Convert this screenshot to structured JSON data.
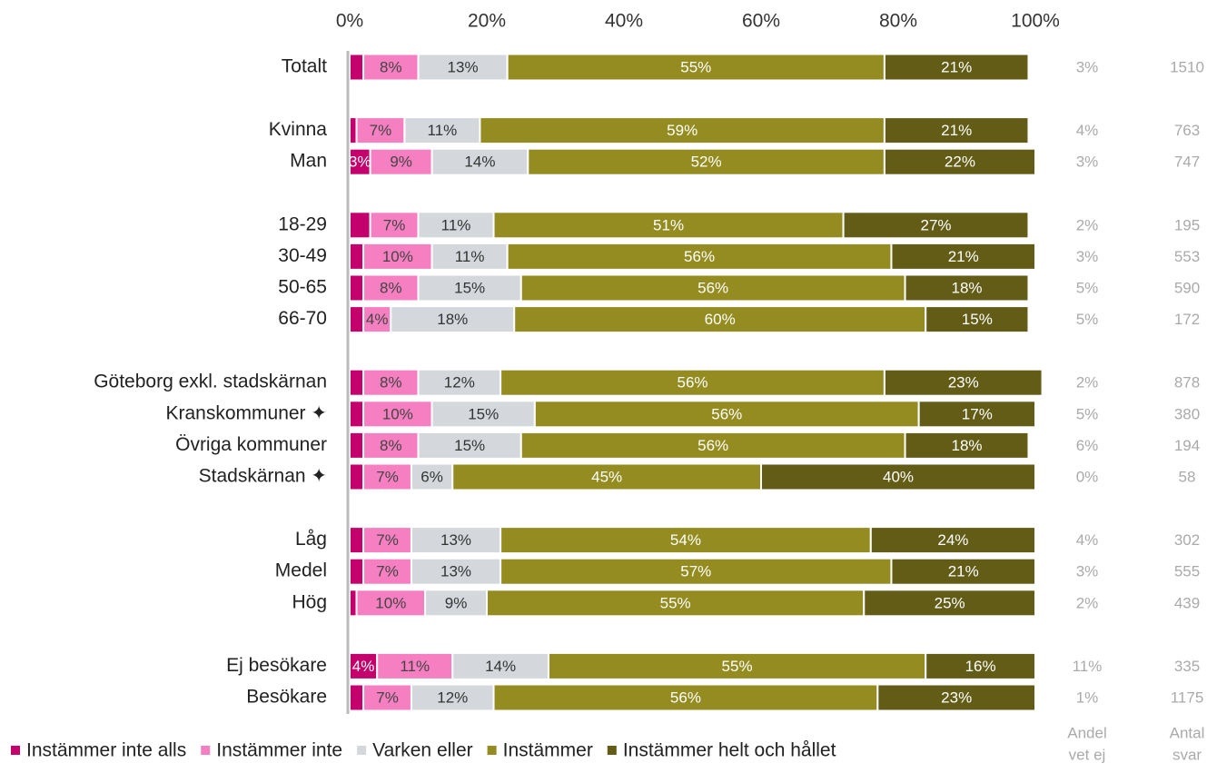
{
  "chart_data": {
    "type": "stacked-bar-horizontal",
    "categories": [
      "Totalt",
      "Kvinna",
      "Man",
      "18-29",
      "30-49",
      "50-65",
      "66-70",
      "Göteborg exkl. stadskärnan",
      "Kranskommuner ✦",
      "Övriga kommuner",
      "Stadskärnan ✦",
      "Låg",
      "Medel",
      "Hög",
      "Ej besökare",
      "Besökare"
    ],
    "series": [
      {
        "name": "Instämmer inte alls",
        "color": "#c4006c",
        "values": [
          2,
          1,
          3,
          3,
          2,
          2,
          2,
          2,
          2,
          2,
          2,
          2,
          2,
          1,
          4,
          2
        ],
        "value_labels": [
          null,
          null,
          "3%",
          null,
          null,
          null,
          null,
          null,
          null,
          null,
          null,
          null,
          null,
          null,
          "4%",
          null
        ]
      },
      {
        "name": "Instämmer inte",
        "color": "#f57fc0",
        "values": [
          8,
          7,
          9,
          7,
          10,
          8,
          4,
          8,
          10,
          8,
          7,
          7,
          7,
          10,
          11,
          7
        ],
        "value_labels": [
          "8%",
          "7%",
          "9%",
          "7%",
          "10%",
          "8%",
          "4%",
          "8%",
          "10%",
          "8%",
          "7%",
          "7%",
          "7%",
          "10%",
          "11%",
          "7%"
        ]
      },
      {
        "name": "Varken eller",
        "color": "#d4d8dc",
        "values": [
          13,
          11,
          14,
          11,
          11,
          15,
          18,
          12,
          15,
          15,
          6,
          13,
          13,
          9,
          14,
          12
        ],
        "value_labels": [
          "13%",
          "11%",
          "14%",
          "11%",
          "11%",
          "15%",
          "18%",
          "12%",
          "15%",
          "15%",
          "6%",
          "13%",
          "13%",
          "9%",
          "14%",
          "12%"
        ]
      },
      {
        "name": "Instämmer",
        "color": "#948c20",
        "values": [
          55,
          59,
          52,
          51,
          56,
          56,
          60,
          56,
          56,
          56,
          45,
          54,
          57,
          55,
          55,
          56
        ],
        "value_labels": [
          "55%",
          "59%",
          "52%",
          "51%",
          "56%",
          "56%",
          "60%",
          "56%",
          "56%",
          "56%",
          "45%",
          "54%",
          "57%",
          "55%",
          "55%",
          "56%"
        ]
      },
      {
        "name": "Instämmer helt och hållet",
        "color": "#625c16",
        "values": [
          21,
          21,
          22,
          27,
          21,
          18,
          15,
          23,
          17,
          18,
          40,
          24,
          21,
          25,
          16,
          23
        ],
        "value_labels": [
          "21%",
          "21%",
          "22%",
          "27%",
          "21%",
          "18%",
          "15%",
          "23%",
          "17%",
          "18%",
          "40%",
          "24%",
          "21%",
          "25%",
          "16%",
          "23%"
        ]
      }
    ],
    "xlim": [
      0,
      100
    ],
    "xticks": [
      {
        "value": 0,
        "label": "0%"
      },
      {
        "value": 20,
        "label": "20%"
      },
      {
        "value": 40,
        "label": "40%"
      },
      {
        "value": 60,
        "label": "60%"
      },
      {
        "value": 80,
        "label": "80%"
      },
      {
        "value": 100,
        "label": "100%"
      }
    ],
    "side_columns": [
      {
        "header": [
          "Andel",
          "vet ej"
        ],
        "values": [
          3,
          4,
          3,
          2,
          3,
          5,
          5,
          2,
          5,
          6,
          0,
          4,
          3,
          2,
          11,
          1
        ],
        "value_labels": [
          "3%",
          "4%",
          "3%",
          "2%",
          "3%",
          "5%",
          "5%",
          "2%",
          "5%",
          "6%",
          "0%",
          "4%",
          "3%",
          "2%",
          "11%",
          "1%"
        ]
      },
      {
        "header": [
          "Antal",
          "svar"
        ],
        "values": [
          1510,
          763,
          747,
          195,
          553,
          590,
          172,
          878,
          380,
          194,
          58,
          302,
          555,
          439,
          335,
          1175
        ]
      }
    ],
    "legend": "bottom"
  }
}
